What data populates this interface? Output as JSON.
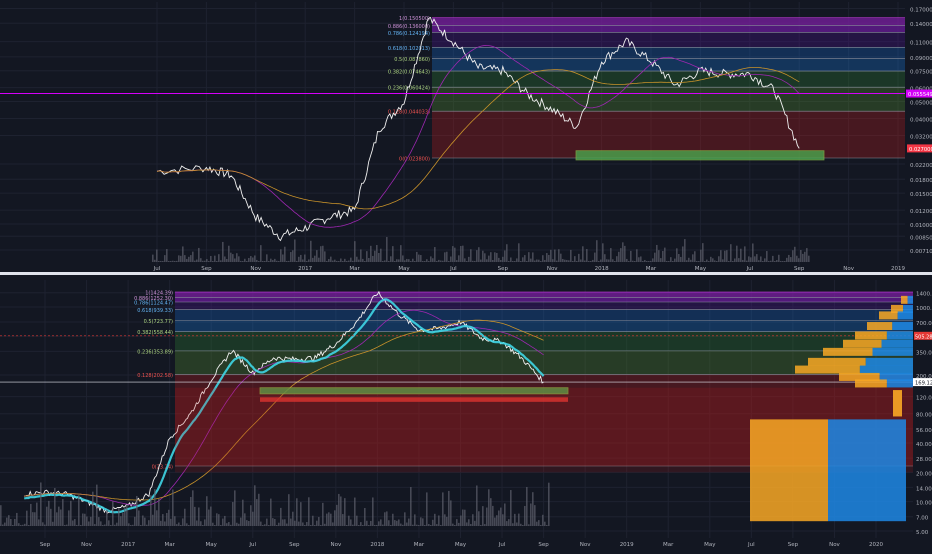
{
  "colors": {
    "background": "#131722",
    "grid": "#1e2230",
    "axis_text": "#b2b5be",
    "price_line": "#f0f0f0",
    "ma_orange": "#c8922a",
    "ma_purple": "#9c27b0",
    "ribbon_cyan": "#3fd6e6",
    "ribbon_blue": "#2962ff",
    "support_green": "#4caf50",
    "resistance_red": "#e53935",
    "current_price_badge": "#f23645",
    "magenta_line": "#d500f9"
  },
  "icons": {
    "panel_divider": "divider-line"
  },
  "chart_data": [
    {
      "type": "line",
      "panel": "upper",
      "scale": "log",
      "x_ticks": [
        "Jul",
        "Sep",
        "Nov",
        "2017",
        "Mar",
        "May",
        "Jul",
        "Sep",
        "Nov",
        "2018",
        "Mar",
        "May",
        "Jul",
        "Sep",
        "Nov",
        "2019"
      ],
      "y_ticks": [
        "0.170000",
        "0.140000",
        "0.110000",
        "0.090000",
        "0.075000",
        "0.060000",
        "0.050000",
        "0.040000",
        "0.032000",
        "0.022000",
        "0.018000",
        "0.015000",
        "0.012000",
        "0.010000",
        "0.008500",
        "0.007100"
      ],
      "current_price_label": "0.027000",
      "magenta_level_label": "0.055549",
      "fib_levels": [
        {
          "label": "1(0.150500)",
          "value": 0.1505
        },
        {
          "label": "0.886(0.136000)",
          "value": 0.136
        },
        {
          "label": "0.786(0.124194)",
          "value": 0.124194
        },
        {
          "label": "0.618(0.102013)",
          "value": 0.102013
        },
        {
          "label": "0.5(0.087860)",
          "value": 0.08786
        },
        {
          "label": "0.382(0.074643)",
          "value": 0.074643
        },
        {
          "label": "0.236(0.060424)",
          "value": 0.060424
        },
        {
          "label": "0.128(0.044033)",
          "value": 0.044033
        },
        {
          "label": "0(0.023800)",
          "value": 0.0238
        }
      ],
      "price_series": [
        [
          "Jul 2016",
          0.02
        ],
        [
          "Sep 2016",
          0.021
        ],
        [
          "Oct 2016",
          0.019
        ],
        [
          "Nov 2016",
          0.011
        ],
        [
          "Dec 2016",
          0.0085
        ],
        [
          "Jan 2017",
          0.0095
        ],
        [
          "Feb 2017",
          0.011
        ],
        [
          "Mar 2017",
          0.012
        ],
        [
          "Apr 2017",
          0.035
        ],
        [
          "May 2017",
          0.05
        ],
        [
          "Jun 2017",
          0.15
        ],
        [
          "Jul 2017",
          0.11
        ],
        [
          "Aug 2017",
          0.078
        ],
        [
          "Sep 2017",
          0.075
        ],
        [
          "Oct 2017",
          0.055
        ],
        [
          "Nov 2017",
          0.045
        ],
        [
          "Dec 2017",
          0.036
        ],
        [
          "Jan 2018",
          0.085
        ],
        [
          "Feb 2018",
          0.11
        ],
        [
          "Mar 2018",
          0.085
        ],
        [
          "Apr 2018",
          0.062
        ],
        [
          "May 2018",
          0.075
        ],
        [
          "Jun 2018",
          0.072
        ],
        [
          "Jul 2018",
          0.072
        ],
        [
          "Aug 2018",
          0.058
        ],
        [
          "Sep 2018",
          0.027
        ]
      ]
    },
    {
      "type": "line",
      "panel": "lower",
      "scale": "log",
      "x_ticks": [
        "Sep",
        "Nov",
        "2017",
        "Mar",
        "May",
        "Jul",
        "Sep",
        "Nov",
        "2018",
        "Mar",
        "May",
        "Jul",
        "Sep",
        "Nov",
        "2019",
        "Mar",
        "May",
        "Jul",
        "Sep",
        "Nov",
        "2020"
      ],
      "y_ticks": [
        "1400.00",
        "1000.00",
        "700.00",
        "500.00",
        "350.00",
        "200.00",
        "120.00",
        "80.00",
        "56.00",
        "40.00",
        "28.00",
        "20.00",
        "14.00",
        "10.00",
        "7.00",
        "5.00"
      ],
      "current_price_label": "169.12",
      "red_level_label": "505.28",
      "fib_levels": [
        {
          "label": "1(1424.39)",
          "value": 1424.39
        },
        {
          "label": "0.886(1252.30)",
          "value": 1252.3
        },
        {
          "label": "0.786(1124.47)",
          "value": 1124.47
        },
        {
          "label": "0.618(939.33)",
          "value": 939.33
        },
        {
          "label": "0.5(723.77)",
          "value": 723.77
        },
        {
          "label": "0.382(558.44)",
          "value": 558.44
        },
        {
          "label": "0.236(353.89)",
          "value": 353.89
        },
        {
          "label": "0.128(202.58)",
          "value": 202.58
        },
        {
          "label": "0(23.24)",
          "value": 23.24
        }
      ],
      "price_series": [
        [
          "Aug 2016",
          12
        ],
        [
          "Sep 2016",
          12.5
        ],
        [
          "Oct 2016",
          12
        ],
        [
          "Nov 2016",
          10
        ],
        [
          "Dec 2016",
          8
        ],
        [
          "Jan 2017",
          9
        ],
        [
          "Feb 2017",
          12
        ],
        [
          "Mar 2017",
          45
        ],
        [
          "Apr 2017",
          80
        ],
        [
          "May 2017",
          180
        ],
        [
          "Jun 2017",
          360
        ],
        [
          "Jul 2017",
          210
        ],
        [
          "Aug 2017",
          300
        ],
        [
          "Sep 2017",
          290
        ],
        [
          "Oct 2017",
          300
        ],
        [
          "Nov 2017",
          420
        ],
        [
          "Dec 2017",
          700
        ],
        [
          "Jan 2018",
          1400
        ],
        [
          "Feb 2018",
          850
        ],
        [
          "Mar 2018",
          580
        ],
        [
          "Apr 2018",
          600
        ],
        [
          "May 2018",
          700
        ],
        [
          "Jun 2018",
          480
        ],
        [
          "Jul 2018",
          440
        ],
        [
          "Aug 2018",
          290
        ],
        [
          "Sep 2018",
          169
        ]
      ]
    }
  ]
}
